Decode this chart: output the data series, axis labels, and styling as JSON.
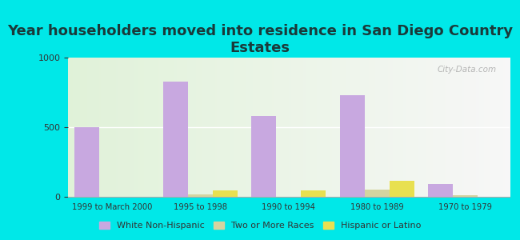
{
  "title": "Year householders moved into residence in San Diego Country\nEstates",
  "categories": [
    "1999 to March 2000",
    "1995 to 1998",
    "1990 to 1994",
    "1980 to 1989",
    "1970 to 1979"
  ],
  "white_non_hispanic": [
    500,
    830,
    580,
    730,
    90
  ],
  "two_or_more_races": [
    0,
    15,
    0,
    50,
    10
  ],
  "hispanic_or_latino": [
    0,
    45,
    45,
    115,
    0
  ],
  "bar_width": 0.28,
  "white_color": "#c8a8e0",
  "two_races_color": "#d4d4a0",
  "hispanic_color": "#e8e050",
  "ylim": [
    0,
    1000
  ],
  "yticks": [
    0,
    500,
    1000
  ],
  "background_outer": "#00e8e8",
  "watermark": "City-Data.com",
  "title_fontsize": 13,
  "title_color": "#1a3a3a"
}
